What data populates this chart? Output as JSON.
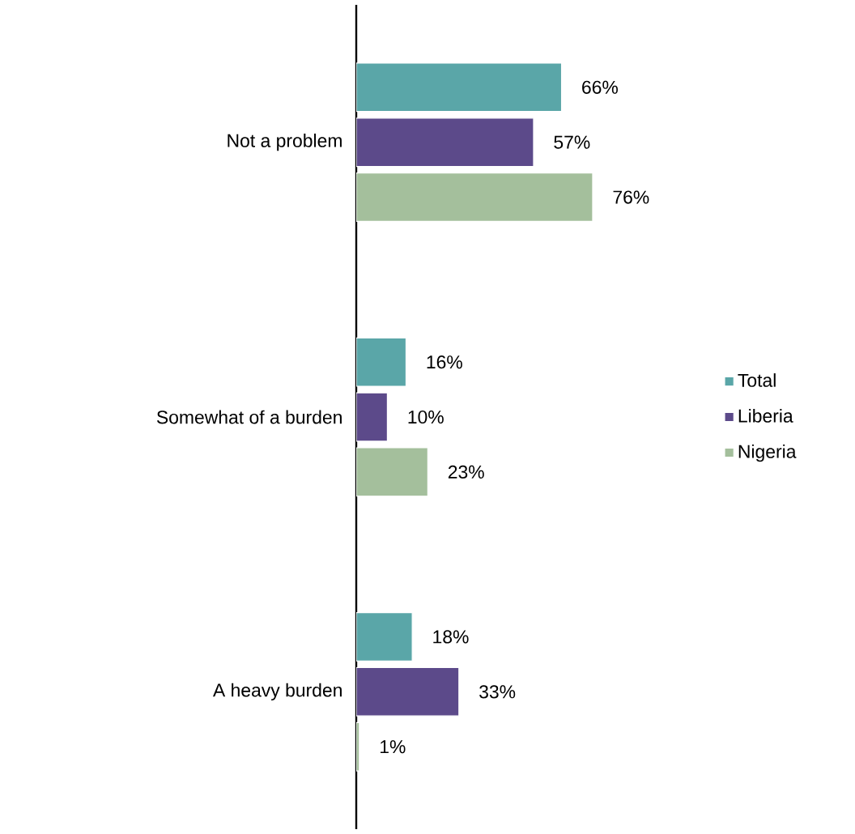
{
  "chart_data": {
    "type": "bar",
    "orientation": "horizontal",
    "categories": [
      "Not a problem",
      "Somewhat of a burden",
      "A heavy burden"
    ],
    "series": [
      {
        "name": "Total",
        "color": "#5aa6a8",
        "values": [
          66,
          16,
          18
        ],
        "value_labels": [
          "66%",
          "16%",
          "18%"
        ]
      },
      {
        "name": "Liberia",
        "color": "#5c4a8a",
        "values": [
          57,
          10,
          33
        ],
        "value_labels": [
          "57%",
          "10%",
          "33%"
        ]
      },
      {
        "name": "Nigeria",
        "color": "#a4bf9c",
        "values": [
          76,
          23,
          1
        ],
        "value_labels": [
          "76%",
          "23%",
          "1%"
        ]
      }
    ],
    "legend": "right"
  }
}
